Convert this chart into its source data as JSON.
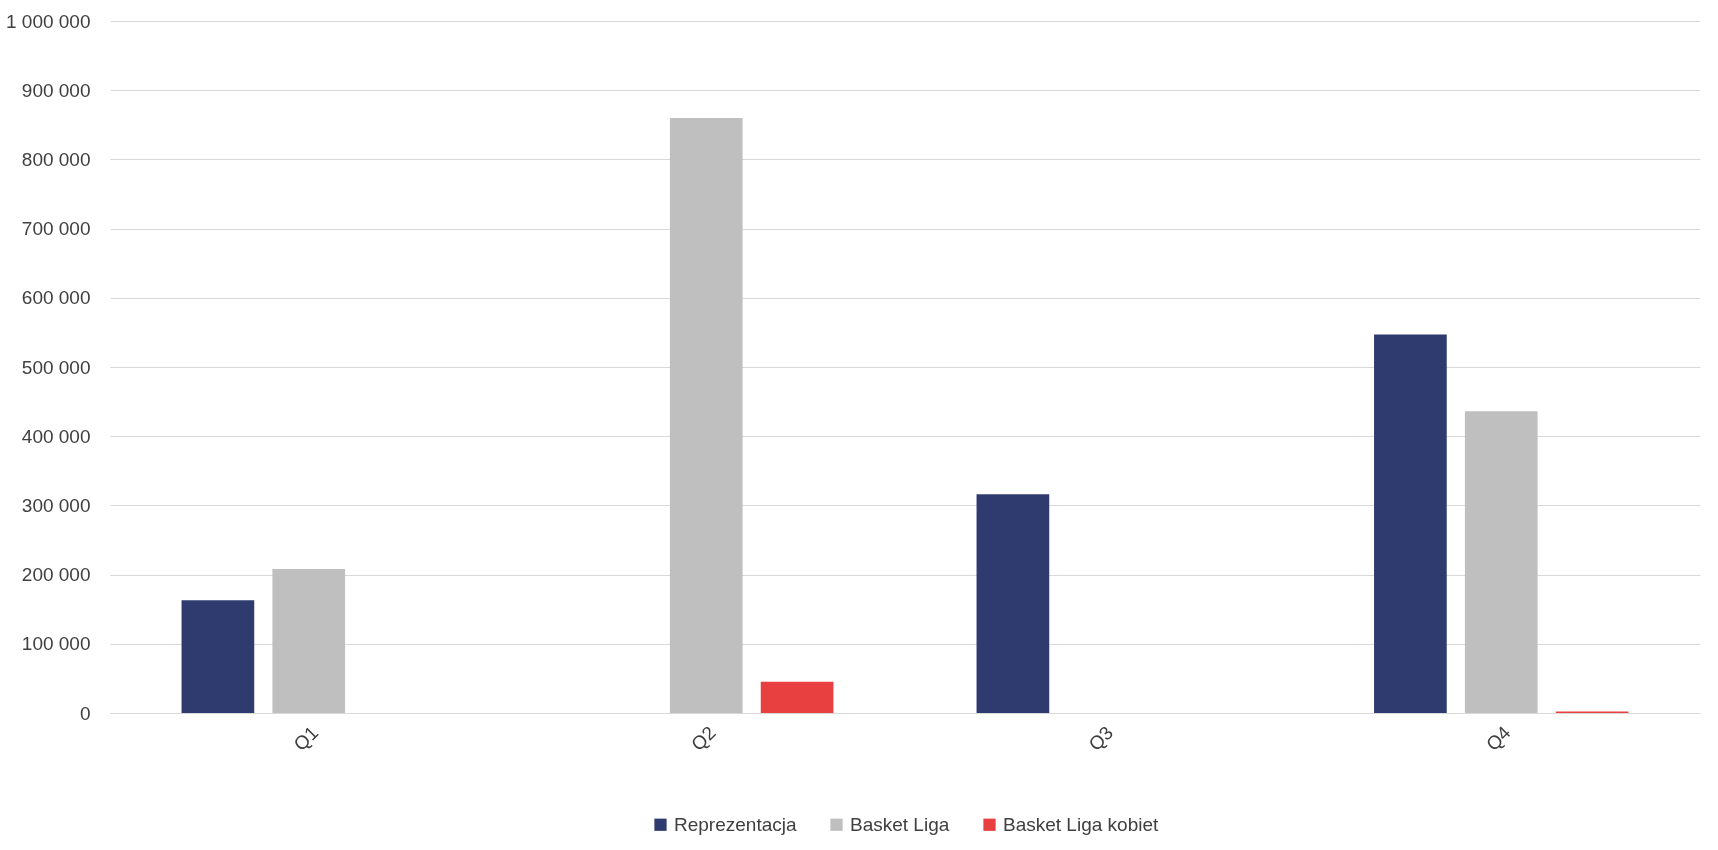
{
  "chart_data": {
    "type": "bar",
    "categories": [
      "Q1",
      "Q2",
      "Q3",
      "Q4"
    ],
    "series": [
      {
        "name": "Reprezentacja",
        "color": "#2f3b6e",
        "values": [
          163000,
          null,
          316000,
          547000
        ]
      },
      {
        "name": "Basket Liga",
        "color": "#bfbfbf",
        "values": [
          208000,
          860000,
          null,
          436000
        ]
      },
      {
        "name": "Basket Liga kobiet",
        "color": "#e84040",
        "values": [
          null,
          45000,
          null,
          2000
        ]
      }
    ],
    "ylim": [
      0,
      1000000
    ],
    "yticks": [
      0,
      {
        "value": 100000,
        "label": "100 000"
      },
      {
        "value": 200000,
        "label": "200 000"
      },
      {
        "value": 300000,
        "label": "300 000"
      },
      {
        "value": 400000,
        "label": "400 000"
      },
      {
        "value": 500000,
        "label": "500 000"
      },
      {
        "value": 600000,
        "label": "600 000"
      },
      {
        "value": 700000,
        "label": "700 000"
      },
      {
        "value": 800000,
        "label": "800 000"
      },
      {
        "value": 900000,
        "label": "900 000"
      },
      {
        "value": 1000000,
        "label": "1 000 000"
      }
    ],
    "grid": "y",
    "legend": "bottom"
  }
}
